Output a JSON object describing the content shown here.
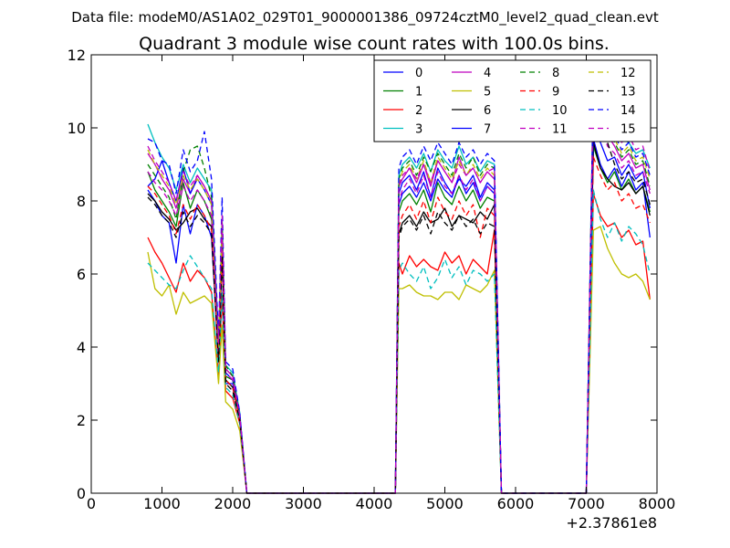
{
  "figure": {
    "suptitle": "Data file: modeM0/AS1A02_029T01_9000001386_09724cztM0_level2_quad_clean.evt",
    "title": "Quadrant 3 module wise count rates with 100.0s bins.",
    "offset_label": "+2.37861e8"
  },
  "chart_data": {
    "type": "line",
    "title": "Quadrant 3 module wise count rates with 100.0s bins.",
    "xlabel": "",
    "ylabel": "",
    "xlim": [
      0,
      8000
    ],
    "ylim": [
      0,
      12
    ],
    "x_offset": 237861000,
    "xticks": [
      "0",
      "1000",
      "2000",
      "3000",
      "4000",
      "5000",
      "6000",
      "7000",
      "8000"
    ],
    "yticks": [
      "0",
      "2",
      "4",
      "6",
      "8",
      "10",
      "12"
    ],
    "grid": false,
    "legend_position": "top-right",
    "x": [
      800,
      900,
      1000,
      1100,
      1200,
      1300,
      1400,
      1500,
      1600,
      1700,
      1800,
      1850,
      1900,
      2000,
      2100,
      2200,
      4200,
      4300,
      4350,
      4400,
      4500,
      4600,
      4700,
      4800,
      4900,
      5000,
      5100,
      5200,
      5300,
      5400,
      5500,
      5600,
      5700,
      5800,
      5900,
      6900,
      7000,
      7100,
      7200,
      7300,
      7400,
      7500,
      7600,
      7700,
      7800,
      7900
    ],
    "series": [
      {
        "name": "0",
        "color": "#0000ff",
        "dash": "solid",
        "values": [
          8.3,
          8.0,
          7.6,
          7.4,
          6.3,
          7.9,
          7.1,
          7.9,
          7.6,
          7.0,
          3.6,
          6.5,
          3.0,
          3.0,
          2.0,
          0,
          0,
          0,
          7.9,
          8.2,
          8.4,
          8.1,
          8.5,
          8.0,
          8.6,
          8.3,
          8.1,
          8.7,
          8.2,
          8.5,
          8.0,
          8.4,
          8.2,
          0,
          0,
          0,
          0,
          9.7,
          9.0,
          8.6,
          8.9,
          8.4,
          8.8,
          8.3,
          8.5,
          7.0
        ]
      },
      {
        "name": "1",
        "color": "#008000",
        "dash": "solid",
        "values": [
          8.8,
          8.3,
          8.0,
          7.7,
          7.3,
          8.5,
          7.8,
          8.3,
          8.0,
          7.5,
          3.8,
          6.9,
          3.2,
          3.1,
          2.1,
          0,
          0,
          0,
          7.7,
          8.0,
          8.2,
          7.9,
          8.3,
          7.7,
          8.5,
          8.1,
          7.9,
          8.4,
          8.0,
          8.3,
          7.8,
          8.1,
          8.0,
          0,
          0,
          0,
          0,
          9.5,
          8.9,
          8.5,
          8.8,
          8.3,
          8.6,
          8.2,
          8.4,
          7.7
        ]
      },
      {
        "name": "2",
        "color": "#ff0000",
        "dash": "solid",
        "values": [
          7.0,
          6.6,
          6.3,
          5.9,
          5.5,
          6.3,
          5.8,
          6.1,
          5.9,
          5.5,
          3.2,
          5.4,
          2.8,
          2.6,
          1.9,
          0,
          0,
          0,
          6.3,
          6.0,
          6.5,
          6.2,
          6.4,
          6.2,
          6.1,
          6.6,
          6.3,
          6.5,
          6.0,
          6.4,
          6.2,
          6.0,
          7.2,
          0,
          0,
          0,
          0,
          8.2,
          7.6,
          7.3,
          7.4,
          7.0,
          7.2,
          6.8,
          6.9,
          5.3
        ]
      },
      {
        "name": "3",
        "color": "#00bfbf",
        "dash": "solid",
        "values": [
          10.1,
          9.6,
          9.2,
          8.9,
          8.3,
          9.0,
          8.5,
          8.9,
          8.6,
          8.3,
          4.2,
          7.5,
          3.5,
          3.3,
          2.2,
          0,
          0,
          0,
          8.7,
          9.0,
          9.2,
          8.9,
          9.3,
          8.8,
          9.4,
          9.1,
          8.9,
          9.5,
          9.0,
          9.2,
          8.8,
          9.1,
          9.0,
          0,
          0,
          0,
          0,
          11.4,
          11.5,
          10.5,
          10.0,
          9.7,
          9.6,
          9.3,
          9.4,
          8.9
        ]
      },
      {
        "name": "4",
        "color": "#bf00bf",
        "dash": "solid",
        "values": [
          9.3,
          9.0,
          8.6,
          8.3,
          7.8,
          8.6,
          8.2,
          8.7,
          8.4,
          8.0,
          4.0,
          7.2,
          3.4,
          3.2,
          2.1,
          0,
          0,
          0,
          8.4,
          8.6,
          8.9,
          8.5,
          9.0,
          8.4,
          9.1,
          8.8,
          8.5,
          9.2,
          8.7,
          8.9,
          8.5,
          8.8,
          8.6,
          0,
          0,
          0,
          0,
          10.8,
          10.2,
          9.8,
          9.5,
          9.1,
          9.3,
          8.9,
          9.0,
          8.3
        ]
      },
      {
        "name": "5",
        "color": "#bfbf00",
        "dash": "solid",
        "values": [
          6.6,
          5.6,
          5.4,
          5.7,
          4.9,
          5.5,
          5.2,
          5.3,
          5.4,
          5.2,
          3.0,
          4.6,
          2.5,
          2.3,
          1.7,
          0,
          0,
          0,
          5.6,
          5.6,
          5.7,
          5.5,
          5.4,
          5.4,
          5.3,
          5.5,
          5.5,
          5.3,
          5.7,
          5.6,
          5.5,
          5.7,
          6.1,
          0,
          0,
          0,
          0,
          7.2,
          7.3,
          6.7,
          6.3,
          6.0,
          5.9,
          6.0,
          5.8,
          5.3
        ]
      },
      {
        "name": "6",
        "color": "#000000",
        "dash": "solid",
        "values": [
          8.2,
          8.0,
          7.7,
          7.5,
          7.2,
          7.4,
          7.7,
          7.8,
          7.5,
          7.3,
          3.7,
          6.8,
          3.1,
          2.9,
          2.0,
          0,
          0,
          0,
          7.1,
          7.4,
          7.6,
          7.3,
          7.7,
          7.4,
          7.5,
          7.8,
          7.3,
          7.6,
          7.5,
          7.4,
          7.7,
          7.5,
          7.9,
          0,
          0,
          0,
          0,
          9.6,
          8.9,
          8.6,
          8.4,
          8.3,
          8.5,
          8.2,
          8.4,
          7.6
        ]
      },
      {
        "name": "7",
        "color": "#0000ff",
        "dash": "solid",
        "values": [
          8.4,
          8.6,
          9.1,
          8.5,
          8.0,
          8.9,
          8.2,
          8.6,
          8.3,
          7.9,
          4.0,
          7.0,
          3.3,
          3.1,
          2.1,
          0,
          0,
          0,
          8.2,
          8.5,
          8.7,
          8.3,
          8.8,
          8.1,
          8.9,
          8.5,
          8.2,
          8.6,
          8.4,
          8.7,
          8.1,
          8.5,
          8.3,
          0,
          0,
          0,
          0,
          10.2,
          9.6,
          9.1,
          9.2,
          8.7,
          9.0,
          8.6,
          8.8,
          7.8
        ]
      },
      {
        "name": "8",
        "color": "#008000",
        "dash": "dashed",
        "values": [
          9.0,
          8.7,
          8.4,
          8.1,
          7.5,
          8.8,
          9.4,
          9.5,
          8.9,
          8.1,
          4.1,
          7.4,
          3.5,
          3.2,
          2.1,
          0,
          0,
          0,
          8.6,
          8.9,
          9.1,
          8.7,
          9.2,
          8.8,
          9.3,
          9.0,
          8.7,
          9.3,
          8.9,
          9.2,
          8.7,
          9.0,
          8.9,
          0,
          0,
          0,
          0,
          10.9,
          10.4,
          9.9,
          9.6,
          9.2,
          9.4,
          9.0,
          9.1,
          8.4
        ]
      },
      {
        "name": "9",
        "color": "#ff0000",
        "dash": "dashed",
        "values": [
          8.4,
          8.2,
          7.9,
          7.6,
          7.1,
          7.9,
          7.5,
          7.9,
          7.6,
          7.2,
          3.7,
          6.6,
          3.1,
          2.9,
          2.0,
          0,
          0,
          0,
          7.3,
          7.6,
          7.9,
          7.5,
          8.0,
          7.4,
          8.1,
          7.7,
          7.5,
          8.0,
          7.6,
          7.9,
          7.0,
          7.8,
          7.6,
          0,
          0,
          0,
          0,
          9.2,
          8.7,
          8.3,
          8.5,
          8.0,
          8.2,
          7.8,
          7.9,
          7.4
        ]
      },
      {
        "name": "10",
        "color": "#00bfbf",
        "dash": "dashed",
        "values": [
          6.3,
          6.1,
          5.9,
          5.7,
          5.6,
          6.1,
          6.5,
          6.2,
          5.9,
          5.6,
          3.3,
          5.5,
          2.9,
          2.7,
          1.9,
          0,
          0,
          0,
          6.1,
          6.3,
          6.0,
          5.8,
          6.2,
          5.6,
          5.9,
          6.4,
          5.9,
          6.2,
          5.7,
          6.1,
          6.0,
          5.8,
          6.0,
          0,
          0,
          0,
          0,
          8.3,
          7.5,
          7.0,
          7.4,
          6.9,
          7.3,
          7.1,
          6.8,
          6.0
        ]
      },
      {
        "name": "11",
        "color": "#bf00bf",
        "dash": "dashed",
        "values": [
          8.8,
          8.5,
          8.3,
          8.0,
          7.6,
          8.4,
          8.0,
          8.3,
          8.0,
          7.6,
          3.9,
          7.0,
          3.3,
          3.1,
          2.1,
          0,
          0,
          0,
          8.0,
          8.3,
          8.6,
          8.2,
          8.7,
          8.1,
          8.8,
          8.4,
          8.2,
          8.7,
          8.3,
          8.6,
          8.0,
          8.4,
          8.2,
          0,
          0,
          0,
          0,
          10.6,
          10.0,
          9.5,
          9.3,
          8.9,
          9.1,
          8.7,
          8.8,
          8.2
        ]
      },
      {
        "name": "12",
        "color": "#bfbf00",
        "dash": "dashed",
        "values": [
          9.4,
          9.0,
          8.7,
          8.4,
          7.9,
          8.7,
          8.3,
          8.6,
          8.3,
          7.9,
          4.0,
          7.3,
          3.4,
          3.2,
          2.1,
          0,
          0,
          0,
          8.5,
          8.8,
          9.0,
          8.6,
          9.1,
          8.5,
          9.2,
          8.9,
          8.6,
          9.1,
          8.7,
          9.0,
          8.6,
          8.9,
          8.7,
          0,
          0,
          0,
          0,
          11.2,
          10.6,
          10.1,
          9.7,
          9.3,
          9.5,
          9.1,
          9.2,
          8.6
        ]
      },
      {
        "name": "13",
        "color": "#000000",
        "dash": "dashed",
        "values": [
          8.1,
          7.9,
          7.6,
          7.4,
          7.0,
          7.7,
          7.3,
          7.6,
          7.4,
          7.1,
          3.6,
          6.5,
          3.0,
          2.8,
          2.0,
          0,
          0,
          0,
          7.0,
          7.3,
          7.5,
          7.2,
          7.6,
          7.1,
          7.7,
          7.4,
          7.2,
          7.6,
          7.3,
          7.5,
          7.1,
          7.4,
          7.3,
          0,
          0,
          0,
          0,
          11.0,
          10.3,
          9.6,
          9.0,
          8.6,
          8.8,
          8.5,
          8.6,
          7.9
        ]
      },
      {
        "name": "14",
        "color": "#0000ff",
        "dash": "dashed",
        "values": [
          9.7,
          9.6,
          9.1,
          9.0,
          8.2,
          9.4,
          8.8,
          9.1,
          9.9,
          8.6,
          4.3,
          8.1,
          3.6,
          3.4,
          2.2,
          0,
          0,
          0,
          8.9,
          9.2,
          9.4,
          9.0,
          9.5,
          9.1,
          9.6,
          9.3,
          9.0,
          9.6,
          9.2,
          9.4,
          9.0,
          9.3,
          9.1,
          0,
          0,
          0,
          0,
          11.0,
          10.5,
          10.0,
          9.8,
          9.4,
          9.6,
          9.2,
          9.3,
          8.7
        ]
      },
      {
        "name": "15",
        "color": "#bf00bf",
        "dash": "dashed",
        "values": [
          9.5,
          9.1,
          8.8,
          8.5,
          8.0,
          8.8,
          8.4,
          8.7,
          8.4,
          8.0,
          4.1,
          7.6,
          3.4,
          3.2,
          2.1,
          0,
          0,
          0,
          8.4,
          8.7,
          8.9,
          8.6,
          9.0,
          8.5,
          9.1,
          8.8,
          8.5,
          9.0,
          8.7,
          8.9,
          8.5,
          8.8,
          8.9,
          0,
          0,
          0,
          0,
          11.3,
          10.8,
          10.3,
          10.0,
          9.6,
          9.8,
          9.4,
          9.5,
          8.8
        ]
      }
    ]
  }
}
